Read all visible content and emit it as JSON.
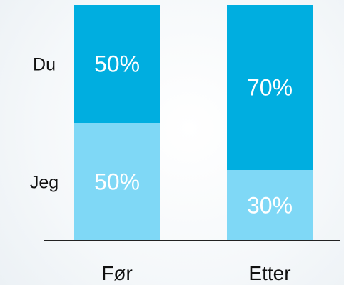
{
  "chart_data": {
    "type": "bar",
    "stacked": true,
    "categories": [
      "Før",
      "Etter"
    ],
    "series": [
      {
        "name": "Jeg",
        "values": [
          50,
          30
        ],
        "value_labels": [
          "50%",
          "30%"
        ],
        "color": "#7fd8f6"
      },
      {
        "name": "Du",
        "values": [
          50,
          70
        ],
        "value_labels": [
          "50%",
          "70%"
        ],
        "color": "#00aee0"
      }
    ],
    "ylim": [
      0,
      100
    ],
    "legend_placement": "left",
    "grid": false
  }
}
